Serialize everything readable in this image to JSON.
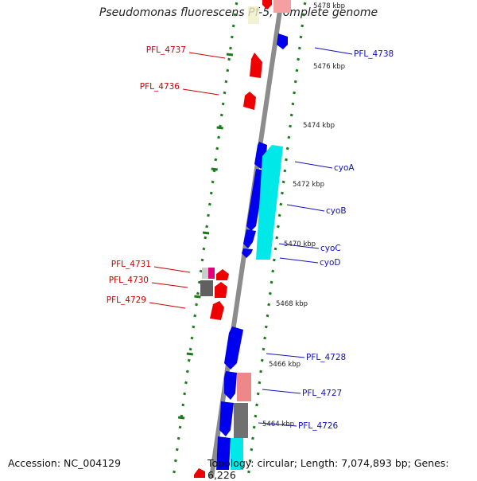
{
  "title": "Pseudomonas fluorescens Pf-5, complete genome",
  "accession_text": "Accession: NC_004129",
  "topology_text": "Topology: circular; Length: 7,074,893 bp; Genes: 6,226",
  "colors": {
    "backbone": "#8c8c8c",
    "tick": "#1a7a1a",
    "forward_cds": "#0000ee",
    "reverse_cds": "#00e8e8",
    "label_forward": "#1010c0",
    "label_reverse": "#cc0000",
    "rna": "#ee0000",
    "rna_pale": "#f4a0a0",
    "pseudo": "#606060"
  },
  "kbp_labels": [
    "5478 kbp",
    "5476 kbp",
    "5474 kbp",
    "5472 kbp",
    "5470 kbp",
    "5468 kbp",
    "5466 kbp",
    "5464 kbp"
  ],
  "gene_labels": {
    "right": [
      "PFL_4738",
      "cyoA",
      "cyoB",
      "cyoC",
      "cyoD",
      "PFL_4728",
      "PFL_4727",
      "PFL_4726"
    ],
    "left": [
      "PFL_4737",
      "PFL_4736",
      "PFL_4731",
      "PFL_4730",
      "PFL_4729"
    ]
  }
}
